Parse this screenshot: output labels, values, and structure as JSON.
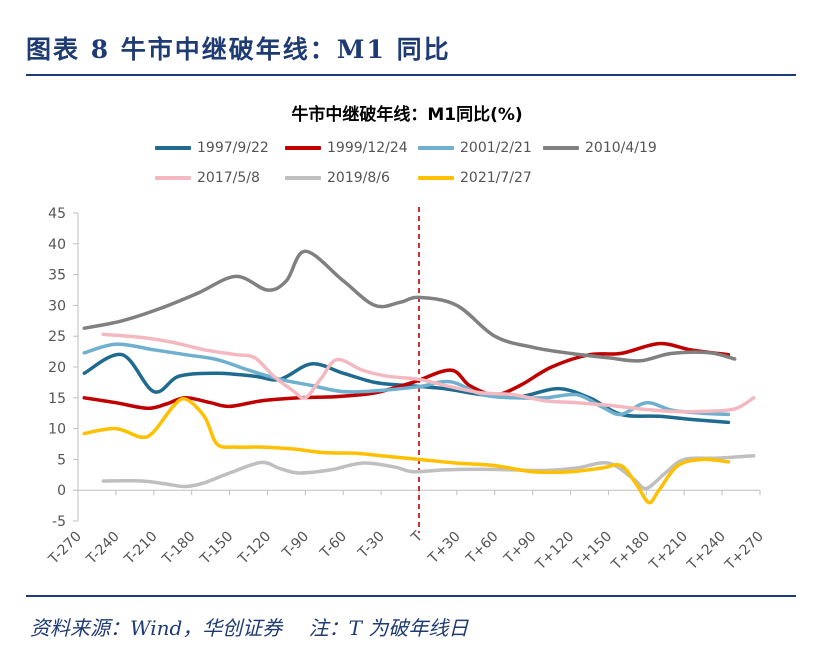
{
  "figure_title": "图表 8   牛市中继破年线：M1 同比",
  "footer": {
    "source": "资料来源：Wind，华创证券",
    "note": "注：T 为破年线日"
  },
  "chart_data": {
    "type": "line",
    "title": "牛市中继破年线：M1同比(%)",
    "xlabel": "",
    "ylabel": "",
    "ylim": [
      -5,
      45
    ],
    "yticks": [
      -5,
      0,
      5,
      10,
      15,
      20,
      25,
      30,
      35,
      40,
      45
    ],
    "xlim": [
      -270,
      270
    ],
    "xticks": [
      {
        "value": -270,
        "label": "T-270"
      },
      {
        "value": -240,
        "label": "T-240"
      },
      {
        "value": -210,
        "label": "T-210"
      },
      {
        "value": -180,
        "label": "T-180"
      },
      {
        "value": -150,
        "label": "T-150"
      },
      {
        "value": -120,
        "label": "T-120"
      },
      {
        "value": -90,
        "label": "T-90"
      },
      {
        "value": -60,
        "label": "T-60"
      },
      {
        "value": -30,
        "label": "T-30"
      },
      {
        "value": 0,
        "label": "T"
      },
      {
        "value": 30,
        "label": "T+30"
      },
      {
        "value": 60,
        "label": "T+60"
      },
      {
        "value": 90,
        "label": "T+90"
      },
      {
        "value": 120,
        "label": "T+120"
      },
      {
        "value": 150,
        "label": "T+150"
      },
      {
        "value": 180,
        "label": "T+180"
      },
      {
        "value": 210,
        "label": "T+210"
      },
      {
        "value": 240,
        "label": "T+240"
      },
      {
        "value": 270,
        "label": "T+270"
      }
    ],
    "vline": {
      "x": 0,
      "color": "#c00000",
      "style": "dashed"
    },
    "grid": false,
    "legend_position": "top",
    "series": [
      {
        "name": "1997/9/22",
        "color": "#1f6b8f",
        "points": [
          [
            -265,
            19
          ],
          [
            -235,
            22
          ],
          [
            -210,
            16
          ],
          [
            -190,
            18.5
          ],
          [
            -160,
            19
          ],
          [
            -130,
            18.5
          ],
          [
            -110,
            18
          ],
          [
            -85,
            20.5
          ],
          [
            -60,
            19
          ],
          [
            -35,
            17.5
          ],
          [
            -10,
            17
          ],
          [
            20,
            16.5
          ],
          [
            50,
            15.5
          ],
          [
            80,
            15.2
          ],
          [
            110,
            16.5
          ],
          [
            135,
            15
          ],
          [
            160,
            12.3
          ],
          [
            190,
            12
          ],
          [
            215,
            11.5
          ],
          [
            245,
            11
          ]
        ]
      },
      {
        "name": "1999/12/24",
        "color": "#c00000",
        "points": [
          [
            -265,
            15
          ],
          [
            -240,
            14.2
          ],
          [
            -215,
            13.3
          ],
          [
            -200,
            14
          ],
          [
            -185,
            15
          ],
          [
            -165,
            14.2
          ],
          [
            -150,
            13.6
          ],
          [
            -125,
            14.5
          ],
          [
            -95,
            15
          ],
          [
            -65,
            15.2
          ],
          [
            -35,
            15.8
          ],
          [
            -5,
            17.5
          ],
          [
            25,
            19.5
          ],
          [
            40,
            17
          ],
          [
            60,
            15.5
          ],
          [
            80,
            17
          ],
          [
            105,
            20
          ],
          [
            135,
            22
          ],
          [
            160,
            22.2
          ],
          [
            190,
            23.8
          ],
          [
            215,
            22.8
          ],
          [
            245,
            22
          ]
        ]
      },
      {
        "name": "2001/2/21",
        "color": "#6fb0cf",
        "points": [
          [
            -265,
            22.3
          ],
          [
            -240,
            23.7
          ],
          [
            -210,
            22.8
          ],
          [
            -185,
            22
          ],
          [
            -160,
            21.2
          ],
          [
            -135,
            19.5
          ],
          [
            -110,
            18
          ],
          [
            -85,
            17
          ],
          [
            -60,
            16
          ],
          [
            -30,
            16.2
          ],
          [
            0,
            16.8
          ],
          [
            25,
            17.6
          ],
          [
            50,
            15.5
          ],
          [
            75,
            15
          ],
          [
            100,
            15
          ],
          [
            125,
            15.5
          ],
          [
            145,
            13.5
          ],
          [
            160,
            12.3
          ],
          [
            180,
            14.2
          ],
          [
            200,
            13
          ],
          [
            225,
            12.5
          ],
          [
            245,
            12.3
          ]
        ]
      },
      {
        "name": "2010/4/19",
        "color": "#808080",
        "points": [
          [
            -265,
            26.3
          ],
          [
            -235,
            27.5
          ],
          [
            -205,
            29.5
          ],
          [
            -175,
            32
          ],
          [
            -145,
            34.7
          ],
          [
            -120,
            32.5
          ],
          [
            -105,
            34
          ],
          [
            -90,
            38.8
          ],
          [
            -60,
            34
          ],
          [
            -35,
            30
          ],
          [
            -15,
            30.5
          ],
          [
            0,
            31.3
          ],
          [
            30,
            30
          ],
          [
            60,
            25
          ],
          [
            90,
            23.2
          ],
          [
            120,
            22.2
          ],
          [
            150,
            21.5
          ],
          [
            175,
            21
          ],
          [
            200,
            22.2
          ],
          [
            230,
            22.3
          ],
          [
            250,
            21.3
          ]
        ]
      },
      {
        "name": "2017/5/8",
        "color": "#f4b9c0",
        "points": [
          [
            -250,
            25.3
          ],
          [
            -220,
            24.8
          ],
          [
            -195,
            24
          ],
          [
            -170,
            22.8
          ],
          [
            -145,
            22
          ],
          [
            -130,
            21.5
          ],
          [
            -115,
            18.5
          ],
          [
            -100,
            16.2
          ],
          [
            -90,
            15
          ],
          [
            -78,
            18
          ],
          [
            -65,
            21.2
          ],
          [
            -45,
            19.5
          ],
          [
            -25,
            18.5
          ],
          [
            0,
            18
          ],
          [
            25,
            16.8
          ],
          [
            50,
            15.8
          ],
          [
            75,
            15.5
          ],
          [
            100,
            14.5
          ],
          [
            125,
            14.2
          ],
          [
            150,
            13.8
          ],
          [
            175,
            13.2
          ],
          [
            200,
            12.8
          ],
          [
            225,
            12.8
          ],
          [
            250,
            13.2
          ],
          [
            265,
            15
          ]
        ]
      },
      {
        "name": "2019/8/6",
        "color": "#bfbfbf",
        "points": [
          [
            -250,
            1.5
          ],
          [
            -220,
            1.5
          ],
          [
            -200,
            1
          ],
          [
            -185,
            0.6
          ],
          [
            -170,
            1.2
          ],
          [
            -150,
            2.8
          ],
          [
            -125,
            4.5
          ],
          [
            -110,
            3.5
          ],
          [
            -95,
            2.8
          ],
          [
            -70,
            3.3
          ],
          [
            -45,
            4.4
          ],
          [
            -20,
            3.8
          ],
          [
            -5,
            3
          ],
          [
            20,
            3.3
          ],
          [
            50,
            3.4
          ],
          [
            75,
            3.3
          ],
          [
            100,
            3.2
          ],
          [
            125,
            3.6
          ],
          [
            150,
            4.4
          ],
          [
            170,
            1.8
          ],
          [
            180,
            0.3
          ],
          [
            195,
            2.8
          ],
          [
            210,
            5
          ],
          [
            235,
            5.2
          ],
          [
            265,
            5.6
          ]
        ]
      },
      {
        "name": "2021/7/27",
        "color": "#ffc000",
        "points": [
          [
            -265,
            9.2
          ],
          [
            -240,
            10
          ],
          [
            -220,
            8.6
          ],
          [
            -210,
            9.5
          ],
          [
            -195,
            13.5
          ],
          [
            -185,
            14.8
          ],
          [
            -170,
            12
          ],
          [
            -160,
            7.5
          ],
          [
            -145,
            7
          ],
          [
            -125,
            7
          ],
          [
            -100,
            6.7
          ],
          [
            -75,
            6.1
          ],
          [
            -50,
            6
          ],
          [
            -30,
            5.6
          ],
          [
            0,
            5
          ],
          [
            30,
            4.4
          ],
          [
            60,
            4
          ],
          [
            90,
            3
          ],
          [
            120,
            3
          ],
          [
            145,
            3.6
          ],
          [
            160,
            4
          ],
          [
            172,
            1
          ],
          [
            182,
            -2
          ],
          [
            190,
            0
          ],
          [
            205,
            4
          ],
          [
            225,
            5
          ],
          [
            245,
            4.6
          ]
        ]
      }
    ]
  }
}
